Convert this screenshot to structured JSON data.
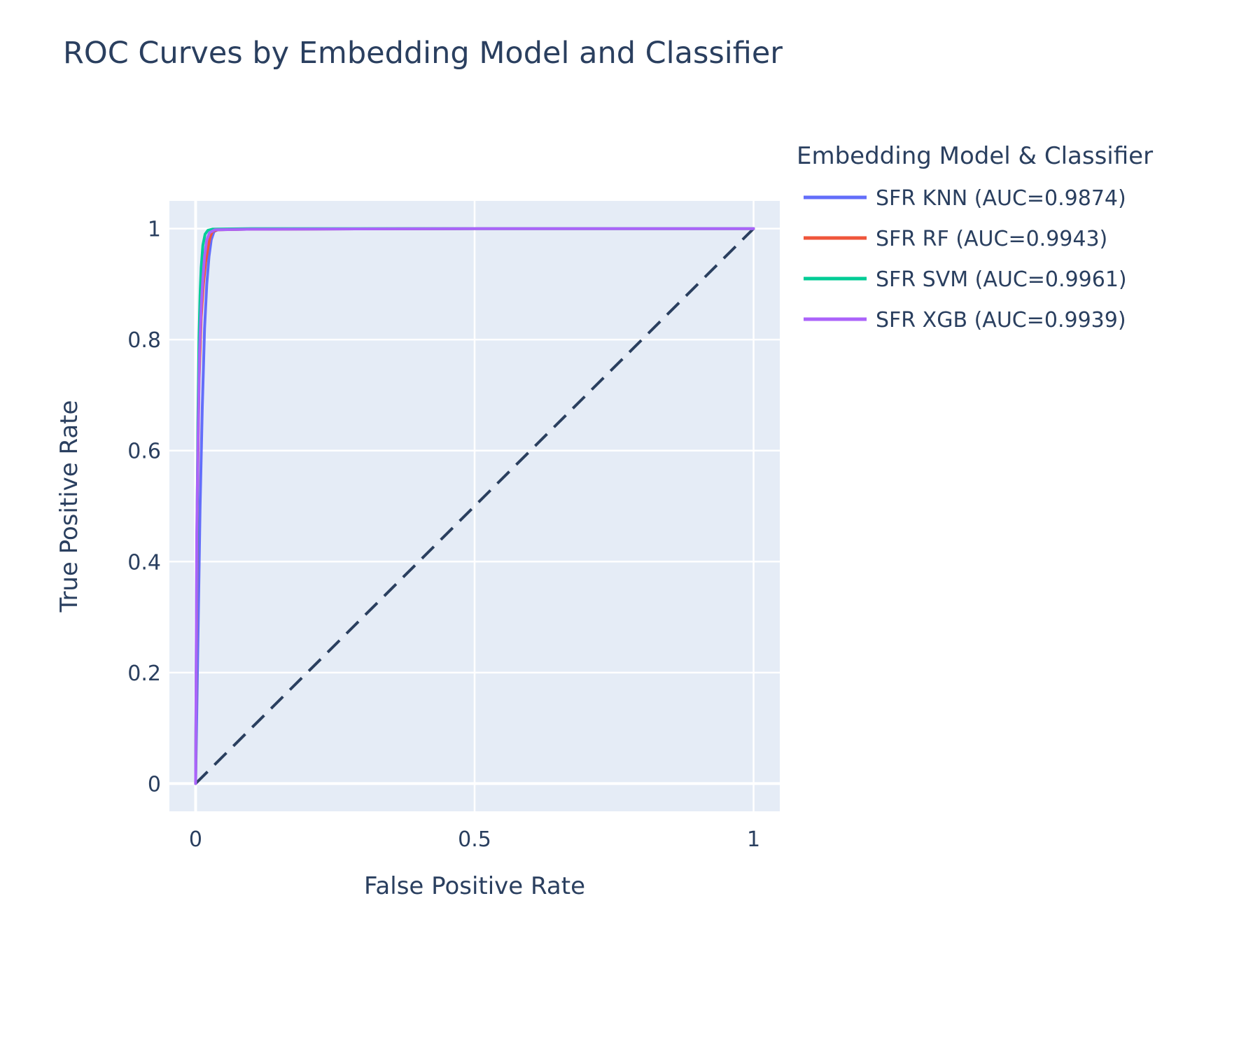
{
  "chart_data": {
    "type": "line",
    "title": "ROC Curves by Embedding Model and Classifier",
    "xlabel": "False Positive Rate",
    "ylabel": "True Positive Rate",
    "xlim": [
      -0.047,
      1.047
    ],
    "ylim": [
      -0.05,
      1.05
    ],
    "x_ticks": [
      0,
      0.5,
      1
    ],
    "x_tick_labels": [
      "0",
      "0.5",
      "1"
    ],
    "y_ticks": [
      0,
      0.2,
      0.4,
      0.6,
      0.8,
      1
    ],
    "y_tick_labels": [
      "0",
      "0.2",
      "0.4",
      "0.6",
      "0.8",
      "1"
    ],
    "grid": true,
    "legend_title": "Embedding Model & Classifier",
    "legend_position": "right",
    "plot_background": "#e5ecf6",
    "series": [
      {
        "name": "SFR KNN (AUC=0.9874)",
        "color": "#636efa",
        "x": [
          0,
          0.004,
          0.008,
          0.012,
          0.016,
          0.02,
          0.024,
          0.028,
          0.033,
          0.04,
          0.1,
          0.5,
          1
        ],
        "y": [
          0,
          0.25,
          0.5,
          0.68,
          0.82,
          0.9,
          0.95,
          0.98,
          0.995,
          0.998,
          0.999,
          1,
          1
        ]
      },
      {
        "name": "SFR RF (AUC=0.9943)",
        "color": "#ef553b",
        "x": [
          0,
          0.003,
          0.006,
          0.01,
          0.014,
          0.018,
          0.022,
          0.026,
          0.03,
          0.04,
          0.1,
          0.5,
          1
        ],
        "y": [
          0,
          0.5,
          0.72,
          0.84,
          0.9,
          0.94,
          0.965,
          0.985,
          0.995,
          0.998,
          0.999,
          1,
          1
        ]
      },
      {
        "name": "SFR SVM (AUC=0.9961)",
        "color": "#00cc96",
        "x": [
          0,
          0.002,
          0.004,
          0.006,
          0.008,
          0.01,
          0.013,
          0.017,
          0.022,
          0.03,
          0.1,
          0.5,
          1
        ],
        "y": [
          0,
          0.4,
          0.65,
          0.8,
          0.88,
          0.93,
          0.97,
          0.99,
          0.997,
          0.999,
          1,
          1,
          1
        ]
      },
      {
        "name": "SFR XGB (AUC=0.9939)",
        "color": "#ab63fa",
        "x": [
          0,
          0.002,
          0.004,
          0.007,
          0.01,
          0.013,
          0.016,
          0.02,
          0.025,
          0.035,
          0.1,
          0.5,
          1
        ],
        "y": [
          0,
          0.45,
          0.6,
          0.78,
          0.86,
          0.91,
          0.95,
          0.98,
          0.993,
          0.998,
          0.999,
          1,
          1
        ]
      }
    ],
    "reference_line": {
      "x": [
        0,
        1
      ],
      "y": [
        0,
        1
      ],
      "color": "#2a3f5f",
      "style": "dashed"
    }
  }
}
